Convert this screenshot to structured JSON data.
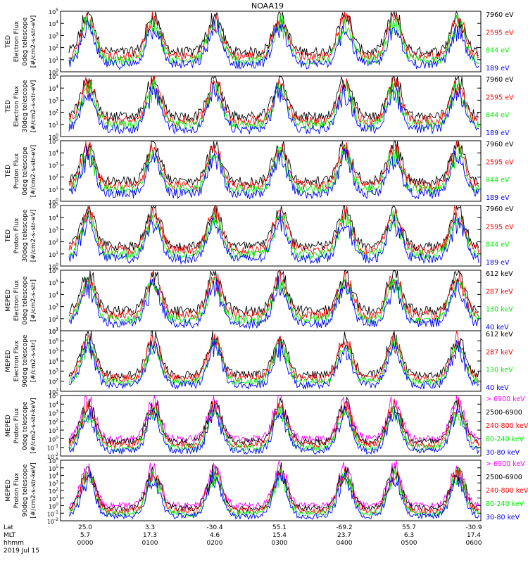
{
  "title": "NOAA19",
  "colors": {
    "blue": "#0000ff",
    "red": "#ff0000",
    "green": "#00ee00",
    "black": "#000000",
    "magenta": "#ff00ff"
  },
  "footer": {
    "row_labels": [
      "Lat",
      "MLT",
      "hhmm",
      "2019 Jul 15"
    ],
    "columns": [
      {
        "lat": "25.0",
        "mlt": "5.7",
        "hhmm": "0000"
      },
      {
        "lat": "3.3",
        "mlt": "17.3",
        "hhmm": "0100"
      },
      {
        "lat": "-30.4",
        "mlt": "4.6",
        "hhmm": "0200"
      },
      {
        "lat": "55.1",
        "mlt": "15.4",
        "hhmm": "0300"
      },
      {
        "lat": "-69.2",
        "mlt": "23.7",
        "hhmm": "0400"
      },
      {
        "lat": "55.7",
        "mlt": "6.3",
        "hhmm": "0500"
      },
      {
        "lat": "-30.9",
        "mlt": "17.4",
        "hhmm": "0600"
      }
    ]
  },
  "chart_data": [
    {
      "type": "line",
      "ylog": true,
      "ylim_exp": [
        0,
        5
      ],
      "ylabel": [
        "TED",
        "Electron Flux",
        "0deg telescope",
        "[#/cm2-s-str-eV]"
      ],
      "series": [
        {
          "name": "7960 eV",
          "color": "black"
        },
        {
          "name": "2595 eV",
          "color": "red"
        },
        {
          "name": "844 eV",
          "color": "green"
        },
        {
          "name": "189 eV",
          "color": "blue"
        }
      ]
    },
    {
      "type": "line",
      "ylog": true,
      "ylim_exp": [
        0,
        5
      ],
      "ylabel": [
        "TED",
        "Electron Flux",
        "30deg telescope",
        "[#/cm2-s-str-eV]"
      ],
      "series": [
        {
          "name": "7960 eV",
          "color": "black"
        },
        {
          "name": "2595 eV",
          "color": "red"
        },
        {
          "name": "844 eV",
          "color": "green"
        },
        {
          "name": "189 eV",
          "color": "blue"
        }
      ]
    },
    {
      "type": "line",
      "ylog": true,
      "ylim_exp": [
        0,
        5
      ],
      "ylabel": [
        "TED",
        "Proton Flux",
        "0deg telescope",
        "[#/cm2-s-str-eV]"
      ],
      "series": [
        {
          "name": "7960 eV",
          "color": "black"
        },
        {
          "name": "2595 eV",
          "color": "red"
        },
        {
          "name": "844 eV",
          "color": "green"
        },
        {
          "name": "189 eV",
          "color": "blue"
        }
      ]
    },
    {
      "type": "line",
      "ylog": true,
      "ylim_exp": [
        0,
        5
      ],
      "ylabel": [
        "TED",
        "Proton Flux",
        "30deg telescope",
        "[#/cm2-s-str-eV]"
      ],
      "series": [
        {
          "name": "7960 eV",
          "color": "black"
        },
        {
          "name": "2595 eV",
          "color": "red"
        },
        {
          "name": "844 eV",
          "color": "green"
        },
        {
          "name": "189 eV",
          "color": "blue"
        }
      ]
    },
    {
      "type": "line",
      "ylog": true,
      "ylim_exp": [
        1,
        6
      ],
      "ylabel": [
        "MEPED",
        "Electron Flux",
        "0deg telescope",
        "[#/cm2-s-str]"
      ],
      "series": [
        {
          "name": "612 keV",
          "color": "black"
        },
        {
          "name": "287 keV",
          "color": "red"
        },
        {
          "name": "130 keV",
          "color": "green"
        },
        {
          "name": "40 keV",
          "color": "blue"
        }
      ]
    },
    {
      "type": "line",
      "ylog": true,
      "ylim_exp": [
        1,
        7
      ],
      "ylabel": [
        "MEPED",
        "Electron Flux",
        "90deg telescope",
        "[#/cm2-s-str]"
      ],
      "series": [
        {
          "name": "612 keV",
          "color": "black"
        },
        {
          "name": "287 keV",
          "color": "red"
        },
        {
          "name": "130 keV",
          "color": "green"
        },
        {
          "name": "40 keV",
          "color": "blue"
        }
      ]
    },
    {
      "type": "line",
      "ylog": true,
      "ylim_exp": [
        -2,
        5
      ],
      "ylabel": [
        "MEPED",
        "Proton Flux",
        "0deg telescope",
        "[#/cm2-s-str-keV]"
      ],
      "series": [
        {
          "name": "> 6900 keV",
          "color": "magenta"
        },
        {
          "name": "2500-6900",
          "color": "black"
        },
        {
          "name": "240-800 keV",
          "color": "red"
        },
        {
          "name": "80-240 keV",
          "color": "green"
        },
        {
          "name": "30-80 keV",
          "color": "blue"
        }
      ]
    },
    {
      "type": "line",
      "ylog": true,
      "ylim_exp": [
        -2,
        6
      ],
      "ylabel": [
        "MEPED",
        "Proton Flux",
        "90deg telescope",
        "[#/cm2-s-str-keV]"
      ],
      "series": [
        {
          "name": "> 6900 keV",
          "color": "magenta"
        },
        {
          "name": "2500-6900",
          "color": "black"
        },
        {
          "name": "240-800 keV",
          "color": "red"
        },
        {
          "name": "80-240 keV",
          "color": "green"
        },
        {
          "name": "30-80 keV",
          "color": "blue"
        }
      ]
    }
  ]
}
